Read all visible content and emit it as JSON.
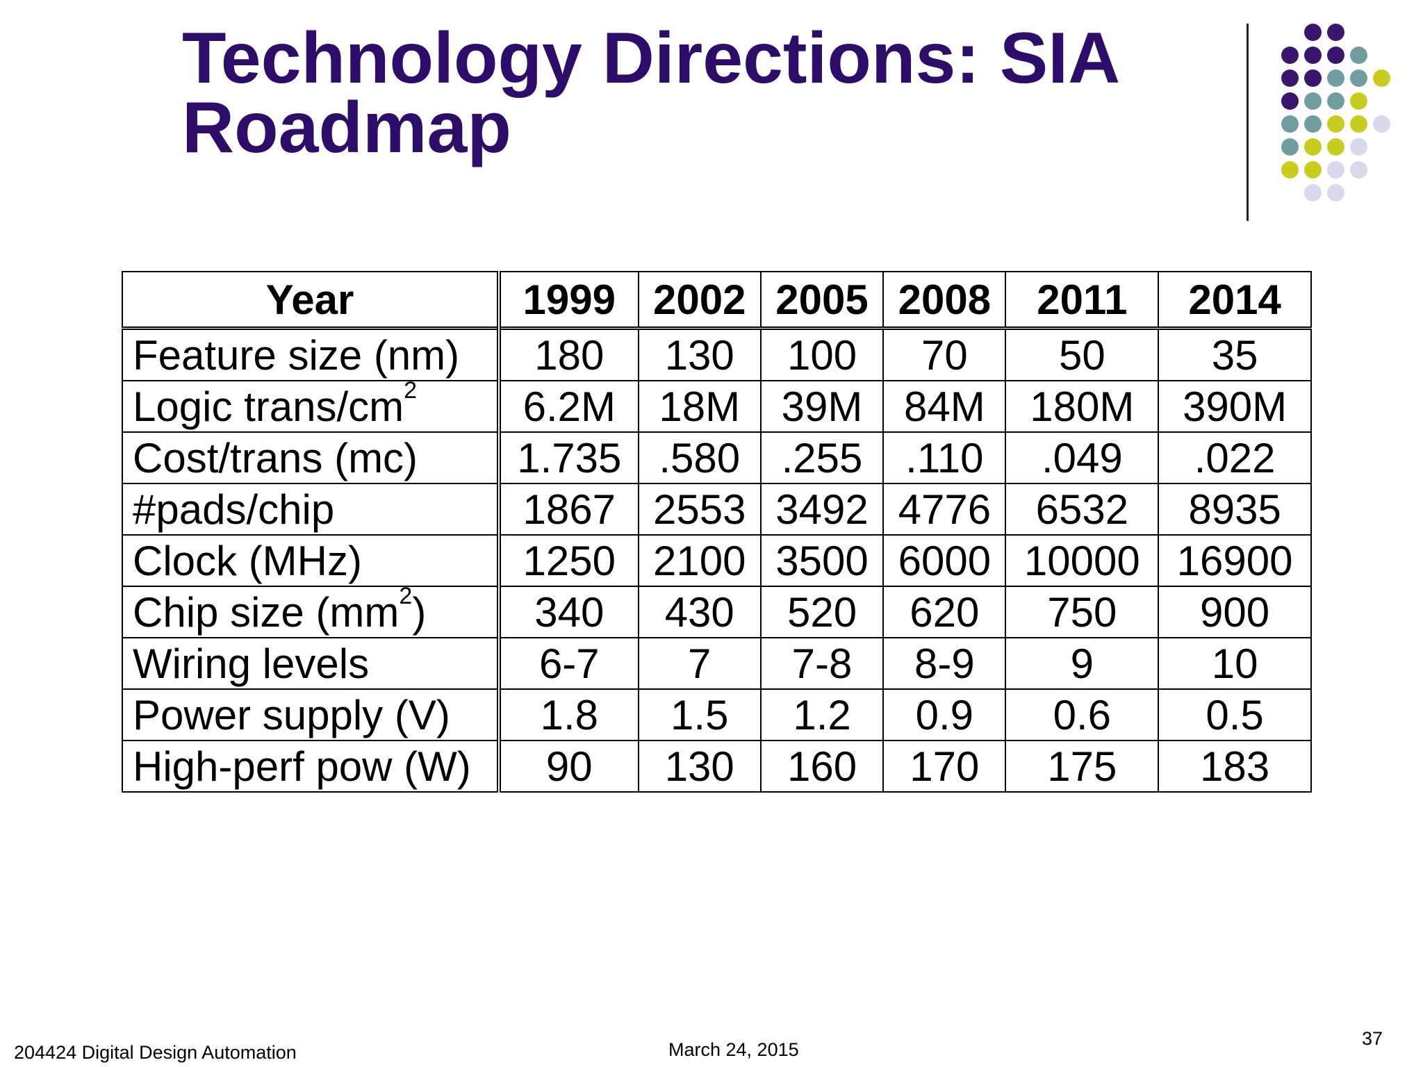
{
  "slide": {
    "title_line1": "Technology Directions: SIA",
    "title_line2": "Roadmap",
    "title_color": "#2e0c6a",
    "footer_left": "204424 Digital Design Automation",
    "footer_date": "March 24, 2015",
    "page_number": "37"
  },
  "decoration": {
    "palette": {
      "purple": "#3b1670",
      "teal": "#6e9ea0",
      "lime": "#c8cc1e",
      "lavender": "#d9d8ec"
    }
  },
  "table": {
    "header_label": "Year",
    "years": [
      "1999",
      "2002",
      "2005",
      "2008",
      "2011",
      "2014"
    ],
    "rows": [
      {
        "label": "Feature size (nm)",
        "sup": "",
        "suffix": "",
        "values": [
          "180",
          "130",
          "100",
          "70",
          "50",
          "35"
        ]
      },
      {
        "label": "Logic trans/cm",
        "sup": "2",
        "suffix": "",
        "values": [
          "6.2M",
          "18M",
          "39M",
          "84M",
          "180M",
          "390M"
        ]
      },
      {
        "label": "Cost/trans (mc)",
        "sup": "",
        "suffix": "",
        "values": [
          "1.735",
          ".580",
          ".255",
          ".110",
          ".049",
          ".022"
        ]
      },
      {
        "label": "#pads/chip",
        "sup": "",
        "suffix": "",
        "values": [
          "1867",
          "2553",
          "3492",
          "4776",
          "6532",
          "8935"
        ]
      },
      {
        "label": "Clock (MHz)",
        "sup": "",
        "suffix": "",
        "values": [
          "1250",
          "2100",
          "3500",
          "6000",
          "10000",
          "16900"
        ]
      },
      {
        "label": "Chip size (mm",
        "sup": "2",
        "suffix": ")",
        "values": [
          "340",
          "430",
          "520",
          "620",
          "750",
          "900"
        ]
      },
      {
        "label": "Wiring levels",
        "sup": "",
        "suffix": "",
        "values": [
          "6-7",
          "7",
          "7-8",
          "8-9",
          "9",
          "10"
        ]
      },
      {
        "label": "Power supply (V)",
        "sup": "",
        "suffix": "",
        "values": [
          "1.8",
          "1.5",
          "1.2",
          "0.9",
          "0.6",
          "0.5"
        ]
      },
      {
        "label": "High-perf pow (W)",
        "sup": "",
        "suffix": "",
        "values": [
          "90",
          "130",
          "160",
          "170",
          "175",
          "183"
        ]
      }
    ]
  }
}
